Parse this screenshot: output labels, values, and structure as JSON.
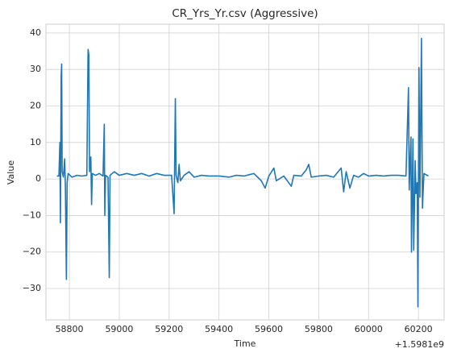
{
  "chart_data": {
    "type": "line",
    "title": "CR_Yrs_Yr.csv (Aggressive)",
    "xlabel": "Time",
    "ylabel": "Value",
    "x_offset_label": "+1.5981e9",
    "xlim": [
      58706,
      60303
    ],
    "ylim": [
      -38.6,
      42.4
    ],
    "xticks": [
      58800,
      59000,
      59200,
      59400,
      59600,
      59800,
      60000,
      60200
    ],
    "yticks": [
      {
        "value": -30,
        "label": "−30"
      },
      {
        "value": -20,
        "label": "−20"
      },
      {
        "value": -10,
        "label": "−10"
      },
      0,
      10,
      20,
      30,
      40
    ],
    "grid": true,
    "series": [
      {
        "color": "#1f77b4",
        "x": [
          58750,
          58758,
          58762,
          58764,
          58767,
          58769,
          58771,
          58776,
          58781,
          58784,
          58788,
          58791,
          58795,
          58810,
          58830,
          58850,
          58870,
          58875,
          58878,
          58881,
          58886,
          58889,
          58892,
          58905,
          58920,
          58935,
          58940,
          58942,
          58945,
          58955,
          58960,
          58963,
          58980,
          59000,
          59030,
          59060,
          59090,
          59120,
          59150,
          59180,
          59210,
          59220,
          59225,
          59228,
          59235,
          59240,
          59245,
          59260,
          59280,
          59300,
          59330,
          59360,
          59400,
          59440,
          59470,
          59500,
          59540,
          59570,
          59585,
          59600,
          59620,
          59630,
          59660,
          59690,
          59700,
          59730,
          59750,
          59760,
          59770,
          59800,
          59830,
          59860,
          59890,
          59900,
          59910,
          59925,
          59940,
          59960,
          59980,
          60000,
          60030,
          60060,
          60090,
          60120,
          60150,
          60160,
          60163,
          60170,
          60172,
          60178,
          60181,
          60187,
          60190,
          60195,
          60198,
          60202,
          60206,
          60212,
          60216,
          60222,
          60240
        ],
        "values": [
          0.8,
          0.8,
          10,
          -12,
          28,
          31.5,
          2,
          0.5,
          5.5,
          -2,
          -27.5,
          -1,
          1.5,
          0.5,
          1,
          0.8,
          1,
          35.5,
          34,
          2,
          6,
          -7,
          1.5,
          1,
          1.5,
          0.8,
          15,
          -10,
          1,
          0.5,
          -27,
          1,
          2,
          1,
          1.5,
          1,
          1.5,
          0.8,
          1.5,
          1,
          1,
          -9.5,
          22,
          1,
          -1,
          4,
          -0.5,
          1,
          2,
          0.5,
          1,
          0.8,
          0.8,
          0.5,
          1,
          0.8,
          1.5,
          -0.5,
          -2.5,
          0.8,
          3,
          -0.5,
          0.8,
          -2,
          1,
          0.8,
          2.5,
          4,
          0.5,
          0.8,
          1,
          0.5,
          3,
          -3.5,
          2,
          -2.5,
          1,
          0.5,
          1.5,
          0.8,
          1,
          0.8,
          1,
          1,
          0.8,
          25,
          -3,
          11.5,
          -20,
          11,
          -19.5,
          5,
          -4,
          -1,
          -35,
          30.5,
          -5,
          38.5,
          -8,
          1.5,
          0.8
        ]
      }
    ]
  }
}
